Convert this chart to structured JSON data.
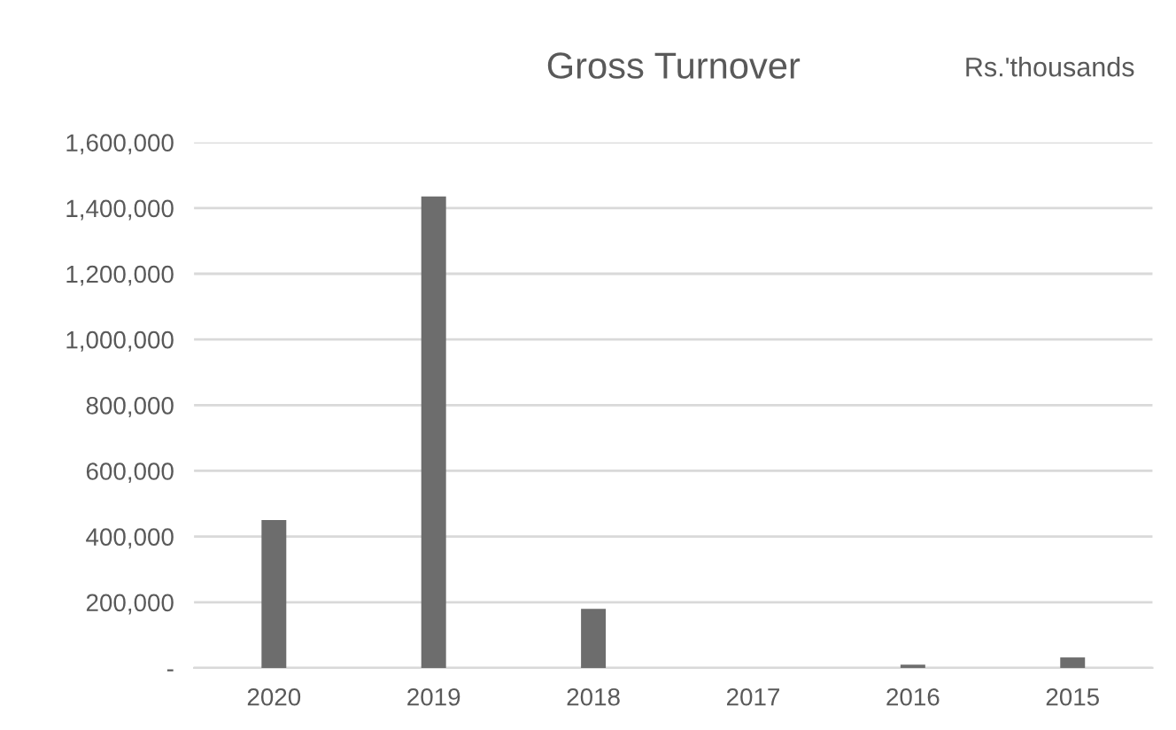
{
  "chart_data": {
    "type": "bar",
    "title": "Gross Turnover",
    "annotations": [
      "Rs.'thousands"
    ],
    "categories": [
      "2020",
      "2019",
      "2018",
      "2017",
      "2016",
      "2015"
    ],
    "values": [
      450000,
      1435000,
      180000,
      0,
      10000,
      32000
    ],
    "color": "#6d6d6d",
    "ylim": [
      0,
      1600000
    ],
    "yticks": [
      {
        "value": 0,
        "label": "-"
      },
      {
        "value": 200000,
        "label": "200,000"
      },
      {
        "value": 400000,
        "label": "400,000"
      },
      {
        "value": 600000,
        "label": "600,000"
      },
      {
        "value": 800000,
        "label": "800,000"
      },
      {
        "value": 1000000,
        "label": "1,000,000"
      },
      {
        "value": 1200000,
        "label": "1,200,000"
      },
      {
        "value": 1400000,
        "label": "1,400,000"
      },
      {
        "value": 1600000,
        "label": "1,600,000"
      }
    ],
    "grid": "y"
  }
}
